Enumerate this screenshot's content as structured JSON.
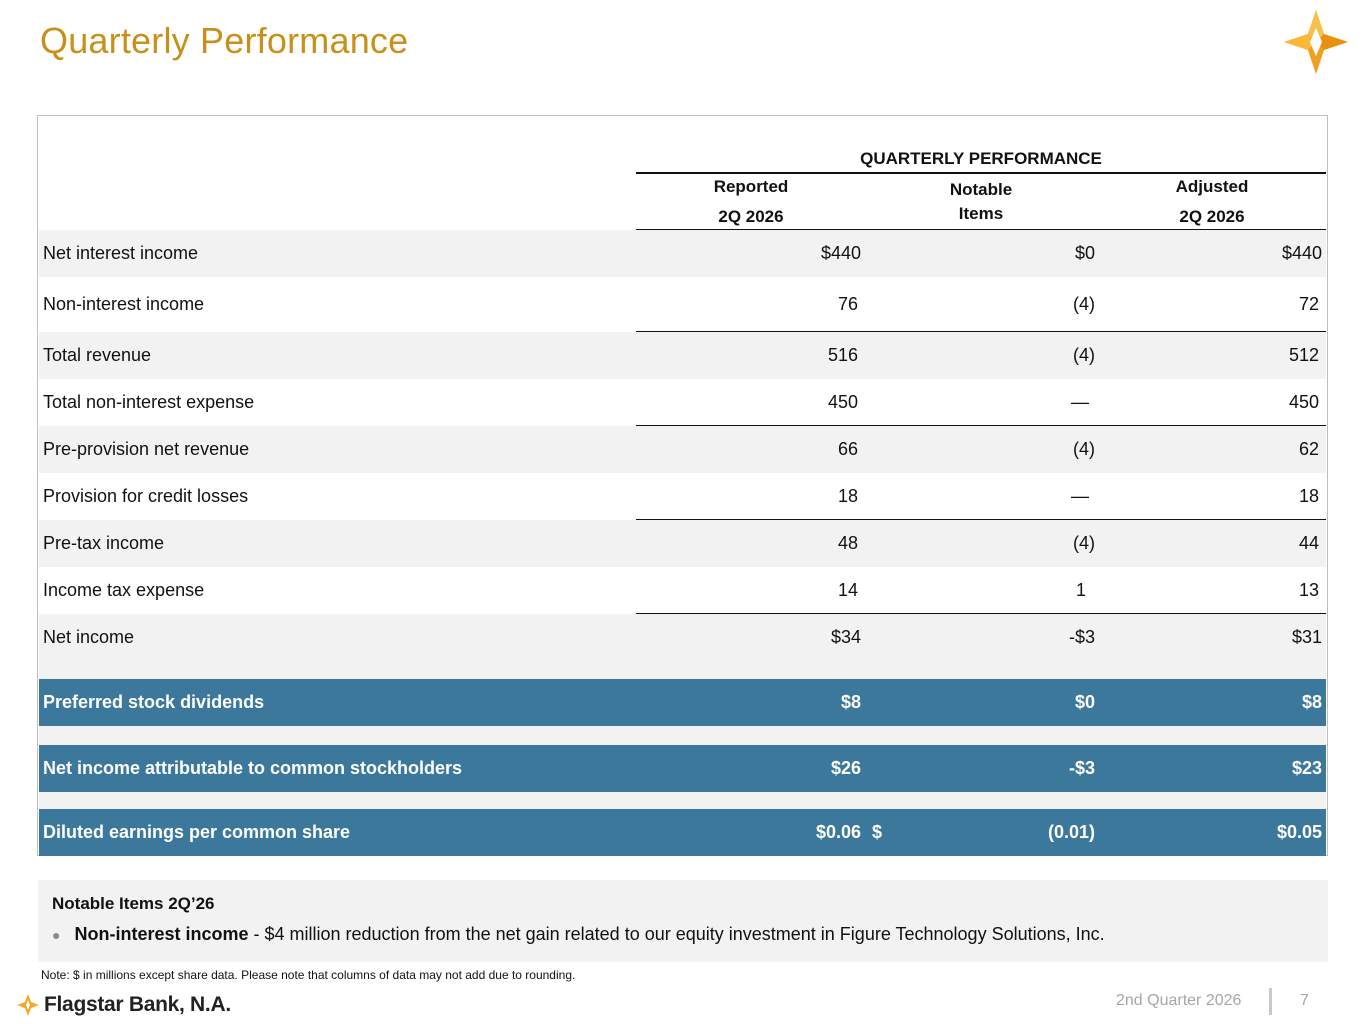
{
  "slide": {
    "title": "Quarterly Performance",
    "logo_icon": "star-logo-icon",
    "accent_color": "#c8901a",
    "highlight_color": "#3b789c"
  },
  "table": {
    "group_header": "QUARTERLY PERFORMANCE",
    "columns": [
      {
        "line1": "Reported",
        "line2": "2Q 2026"
      },
      {
        "line1": "Notable",
        "line2": "Items"
      },
      {
        "line1": "Adjusted",
        "line2": "2Q 2026"
      }
    ],
    "rows": [
      {
        "label": "Net interest income",
        "reported": "$440",
        "notable": "$0",
        "adjusted": "$440"
      },
      {
        "label": "Non-interest income",
        "reported": "76",
        "notable": "(4)",
        "adjusted": "72"
      },
      {
        "label": "Total revenue",
        "reported": "516",
        "notable": "(4)",
        "adjusted": "512"
      },
      {
        "label": "Total non-interest expense",
        "reported": "450",
        "notable": "—",
        "adjusted": "450"
      },
      {
        "label": "Pre-provision net revenue",
        "reported": "66",
        "notable": "(4)",
        "adjusted": "62"
      },
      {
        "label": "Provision for credit losses",
        "reported": "18",
        "notable": "—",
        "adjusted": "18"
      },
      {
        "label": "Pre-tax income",
        "reported": "48",
        "notable": "(4)",
        "adjusted": "44"
      },
      {
        "label": "Income tax expense",
        "reported": "14",
        "notable": "1",
        "adjusted": "13"
      },
      {
        "label": "Net income",
        "reported": "$34",
        "notable": "-$3",
        "adjusted": "$31"
      }
    ],
    "highlight_rows": [
      {
        "label": "Preferred stock dividends",
        "reported": "$8",
        "notable": "$0",
        "adjusted": "$8"
      },
      {
        "label": "Net income attributable to common stockholders",
        "reported": "$26",
        "notable": "-$3",
        "adjusted": "$23"
      },
      {
        "label": "Diluted earnings per common share",
        "reported": "$0.06",
        "notable_prefix": "$",
        "notable": "(0.01)",
        "adjusted": "$0.05"
      }
    ]
  },
  "notes": {
    "title": "Notable Items 2Q’26",
    "bullet_label": "Non-interest income",
    "bullet_text": " - $4 million reduction from the net gain related to our equity investment in Figure Technology Solutions, Inc."
  },
  "footnote": "Note: $ in millions except share data. Please note that columns of data may not add due to rounding.",
  "footer": {
    "brand": "Flagstar Bank, N.A.",
    "brand_icon": "flagstar-star-icon",
    "period": "2nd Quarter 2026",
    "page": "7"
  }
}
